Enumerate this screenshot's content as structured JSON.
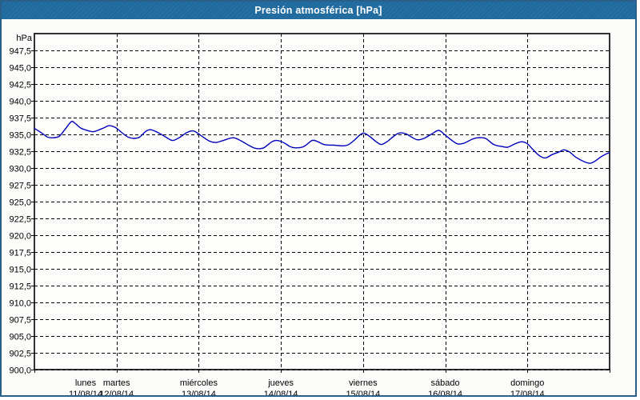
{
  "header": {
    "title": "Presión atmosférica [hPa]"
  },
  "colors": {
    "header_bg": "#1f6a9e",
    "frame_border": "#2a5f88",
    "background": "#fcfdfa",
    "plot_bg": "#fdfefc",
    "grid": "#000000",
    "axis": "#000000",
    "series": "#0000bb",
    "title_text": "#ffffff",
    "label_text": "#000000"
  },
  "chart_data": {
    "type": "line",
    "title": "Presión atmosférica [hPa]",
    "legend_shown": false,
    "grid": {
      "horizontal": "dashed every 2.5 hPa",
      "vertical": "dashed at each day boundary"
    },
    "y_axis": {
      "unit_label": "hPa",
      "min": 900,
      "max": 950,
      "tick_step": 2.5,
      "decimal_style": "comma",
      "tick_labels": [
        "947,5",
        "945,0",
        "942,5",
        "940,0",
        "937,5",
        "935,0",
        "932,5",
        "930,0",
        "927,5",
        "925,0",
        "922,5",
        "920,0",
        "917,5",
        "915,0",
        "912,5",
        "910,0",
        "907,5",
        "905,0",
        "902,5",
        "900,0"
      ]
    },
    "x_axis": {
      "span_days": 7,
      "day_labels": [
        {
          "name": "lunes",
          "date": "11/08/14"
        },
        {
          "name": "martes",
          "date": "12/08/14"
        },
        {
          "name": "miércoles",
          "date": "13/08/14"
        },
        {
          "name": "jueves",
          "date": "14/08/14"
        },
        {
          "name": "viernes",
          "date": "15/08/14"
        },
        {
          "name": "sábado",
          "date": "16/08/14"
        },
        {
          "name": "domingo",
          "date": "17/08/14"
        }
      ]
    },
    "series": [
      {
        "name": "Presión atmosférica",
        "color": "#0000bb",
        "units": "hPa",
        "points_days_hpa": [
          [
            0.0,
            935.9
          ],
          [
            0.09,
            935.2
          ],
          [
            0.16,
            934.6
          ],
          [
            0.22,
            934.5
          ],
          [
            0.3,
            934.7
          ],
          [
            0.37,
            935.7
          ],
          [
            0.45,
            936.9
          ],
          [
            0.5,
            936.6
          ],
          [
            0.57,
            935.9
          ],
          [
            0.67,
            935.5
          ],
          [
            0.72,
            935.4
          ],
          [
            0.77,
            935.6
          ],
          [
            0.85,
            936.0
          ],
          [
            0.91,
            936.3
          ],
          [
            0.99,
            936.0
          ],
          [
            1.06,
            935.3
          ],
          [
            1.14,
            934.6
          ],
          [
            1.21,
            934.4
          ],
          [
            1.28,
            934.6
          ],
          [
            1.35,
            935.4
          ],
          [
            1.41,
            935.7
          ],
          [
            1.5,
            935.3
          ],
          [
            1.6,
            934.6
          ],
          [
            1.68,
            934.1
          ],
          [
            1.76,
            934.5
          ],
          [
            1.86,
            935.3
          ],
          [
            1.94,
            935.5
          ],
          [
            2.03,
            934.8
          ],
          [
            2.13,
            934.0
          ],
          [
            2.21,
            933.8
          ],
          [
            2.3,
            934.1
          ],
          [
            2.42,
            934.5
          ],
          [
            2.52,
            934.0
          ],
          [
            2.62,
            933.3
          ],
          [
            2.7,
            932.9
          ],
          [
            2.79,
            933.0
          ],
          [
            2.89,
            933.9
          ],
          [
            2.95,
            934.1
          ],
          [
            3.03,
            933.8
          ],
          [
            3.11,
            933.2
          ],
          [
            3.18,
            933.0
          ],
          [
            3.28,
            933.2
          ],
          [
            3.38,
            934.1
          ],
          [
            3.45,
            933.9
          ],
          [
            3.52,
            933.5
          ],
          [
            3.59,
            933.4
          ],
          [
            3.64,
            933.4
          ],
          [
            3.74,
            933.3
          ],
          [
            3.81,
            933.4
          ],
          [
            3.88,
            934.0
          ],
          [
            3.96,
            934.9
          ],
          [
            4.01,
            935.2
          ],
          [
            4.08,
            934.7
          ],
          [
            4.16,
            933.9
          ],
          [
            4.22,
            933.5
          ],
          [
            4.29,
            933.9
          ],
          [
            4.37,
            934.7
          ],
          [
            4.44,
            935.2
          ],
          [
            4.52,
            935.1
          ],
          [
            4.59,
            934.6
          ],
          [
            4.66,
            934.2
          ],
          [
            4.74,
            934.4
          ],
          [
            4.84,
            935.1
          ],
          [
            4.92,
            935.6
          ],
          [
            4.99,
            935.0
          ],
          [
            5.07,
            934.2
          ],
          [
            5.15,
            933.6
          ],
          [
            5.23,
            933.7
          ],
          [
            5.33,
            934.3
          ],
          [
            5.4,
            934.5
          ],
          [
            5.49,
            934.4
          ],
          [
            5.59,
            933.5
          ],
          [
            5.69,
            933.2
          ],
          [
            5.76,
            933.1
          ],
          [
            5.85,
            933.6
          ],
          [
            5.93,
            933.9
          ],
          [
            6.0,
            933.6
          ],
          [
            6.07,
            932.7
          ],
          [
            6.15,
            931.8
          ],
          [
            6.22,
            931.5
          ],
          [
            6.3,
            932.0
          ],
          [
            6.39,
            932.4
          ],
          [
            6.44,
            932.7
          ],
          [
            6.51,
            932.4
          ],
          [
            6.59,
            931.6
          ],
          [
            6.68,
            931.0
          ],
          [
            6.76,
            930.7
          ],
          [
            6.82,
            931.0
          ],
          [
            6.9,
            931.7
          ],
          [
            6.96,
            932.1
          ],
          [
            7.0,
            932.3
          ]
        ]
      }
    ]
  }
}
